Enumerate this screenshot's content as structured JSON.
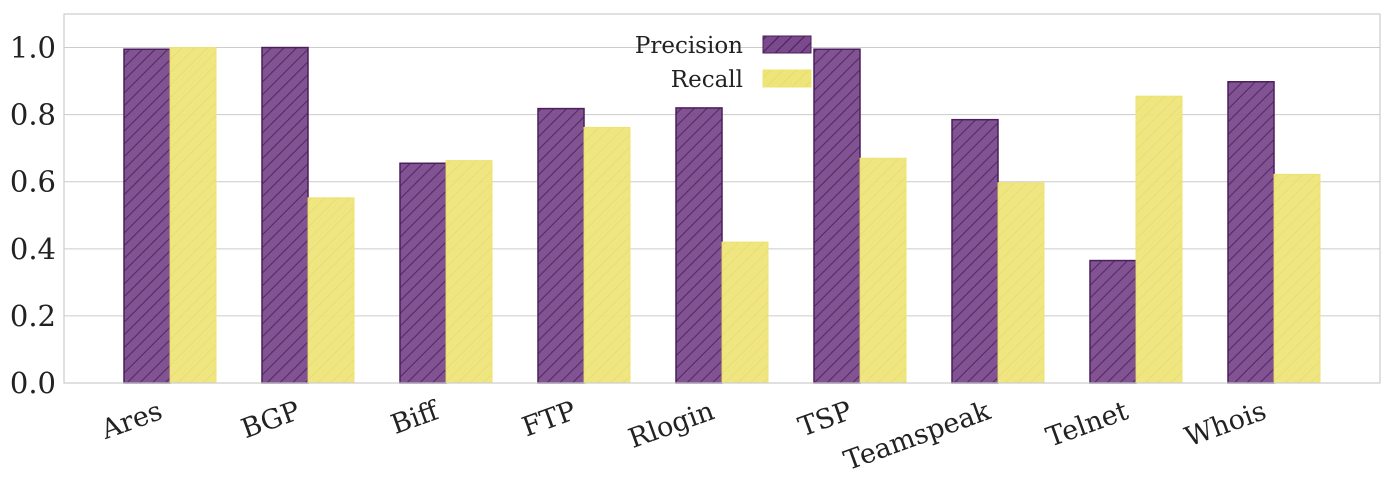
{
  "chart_data": {
    "type": "bar",
    "categories": [
      "Ares",
      "BGP",
      "Biff",
      "FTP",
      "Rlogin",
      "TSP",
      "Teamspeak",
      "Telnet",
      "Whois"
    ],
    "series": [
      {
        "name": "Precision",
        "values": [
          0.995,
          1.0,
          0.655,
          0.818,
          0.82,
          0.995,
          0.785,
          0.365,
          0.898
        ],
        "color": "#5b2a6e",
        "hatch": "diagonal"
      },
      {
        "name": "Recall",
        "values": [
          1.0,
          0.552,
          0.663,
          0.762,
          0.42,
          0.67,
          0.597,
          0.855,
          0.622
        ],
        "color": "#ede36f",
        "hatch": "light-diagonal"
      }
    ],
    "yticks": [
      "0.0",
      "0.2",
      "0.4",
      "0.6",
      "0.8",
      "1.0"
    ],
    "ylim": [
      0,
      1.1
    ],
    "grid": true,
    "legend_position": "top-center",
    "xlabel": "",
    "ylabel": "",
    "title": ""
  }
}
